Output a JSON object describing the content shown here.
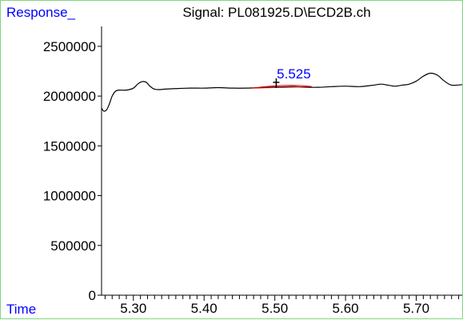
{
  "chart_data": {
    "type": "line",
    "title": "Signal: PL081925.D\\ECD2B.ch",
    "ylabel": "Response_",
    "xlabel": "Time",
    "xlim": [
      5.255,
      5.765
    ],
    "ylim": [
      0,
      2700000
    ],
    "grid": false,
    "x_ticks": [
      5.3,
      5.4,
      5.5,
      5.6,
      5.7
    ],
    "x_tick_labels": [
      "5.30",
      "5.40",
      "5.50",
      "5.60",
      "5.70"
    ],
    "y_ticks": [
      0,
      500000,
      1000000,
      1500000,
      2000000,
      2500000
    ],
    "y_tick_labels": [
      "0",
      "500000",
      "1000000",
      "1500000",
      "2000000",
      "2500000"
    ],
    "series": [
      {
        "color": "#000000",
        "x": [
          5.255,
          5.258,
          5.262,
          5.266,
          5.27,
          5.275,
          5.28,
          5.29,
          5.3,
          5.306,
          5.312,
          5.318,
          5.322,
          5.326,
          5.33,
          5.336,
          5.345,
          5.36,
          5.38,
          5.4,
          5.42,
          5.44,
          5.46,
          5.48,
          5.5,
          5.51,
          5.52,
          5.53,
          5.54,
          5.56,
          5.58,
          5.6,
          5.62,
          5.64,
          5.65,
          5.66,
          5.67,
          5.68,
          5.69,
          5.7,
          5.71,
          5.72,
          5.73,
          5.74,
          5.75,
          5.765
        ],
        "y": [
          1880000,
          1850000,
          1860000,
          1920000,
          2000000,
          2050000,
          2060000,
          2060000,
          2080000,
          2120000,
          2145000,
          2140000,
          2110000,
          2085000,
          2070000,
          2065000,
          2070000,
          2075000,
          2080000,
          2080000,
          2085000,
          2080000,
          2080000,
          2085000,
          2090000,
          2092000,
          2095000,
          2095000,
          2090000,
          2088000,
          2095000,
          2100000,
          2095000,
          2110000,
          2120000,
          2110000,
          2100000,
          2110000,
          2120000,
          2150000,
          2200000,
          2230000,
          2210000,
          2150000,
          2110000,
          2115000
        ]
      }
    ],
    "peak": {
      "label": "5.525",
      "marker_x": 5.502,
      "label_color": "#0000ff",
      "baseline_color": "#cc0000",
      "baseline_x": [
        5.468,
        5.552
      ],
      "baseline_y": [
        2080000,
        2095000
      ]
    }
  }
}
